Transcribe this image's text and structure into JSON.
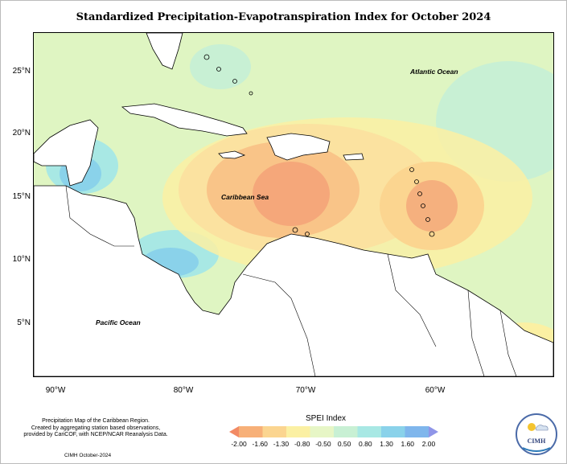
{
  "title": "Standardized Precipitation-Evapotranspiration Index for October 2024",
  "map": {
    "labels": {
      "atlantic": "Atlantic Ocean",
      "caribbean": "Caribbean Sea",
      "pacific": "Pacific Ocean"
    },
    "lat_ticks": [
      "25°N",
      "20°N",
      "15°N",
      "10°N",
      "5°N"
    ],
    "lon_ticks": [
      "90°W",
      "80°W",
      "70°W",
      "60°W"
    ]
  },
  "caption": {
    "line1": "Precipitation Map of the Caribbean Region.",
    "line2": "Created by aggregating station based observations,",
    "line3": "provided by CariCOF, with NCEP/NCAR Reanalysis Data.",
    "credit": "CIMH October-2024"
  },
  "legend": {
    "title": "SPEI Index",
    "ticks": [
      "-2.00",
      "-1.60",
      "-1.30",
      "-0.80",
      "-0.50",
      "0.50",
      "0.80",
      "1.30",
      "1.60",
      "2.00"
    ],
    "colors": [
      "#f28a64",
      "#f7b078",
      "#fbd590",
      "#fbf0a3",
      "#e7f6c6",
      "#c8f0d4",
      "#a8e8e4",
      "#8ad2ea",
      "#7fb6ec",
      "#8f95e8"
    ]
  },
  "logo": {
    "text": "CIMH"
  }
}
